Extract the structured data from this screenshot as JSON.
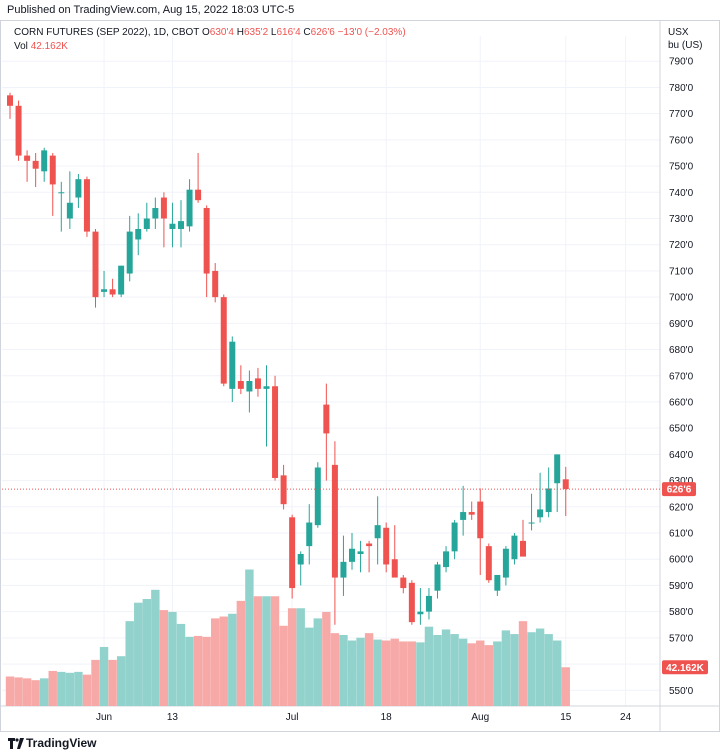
{
  "header": {
    "published_text": "Published on TradingView.com, Aug 15, 2022 18:03 UTC-5"
  },
  "legend": {
    "symbol": "CORN FUTURES (SEP 2022), 1D, CBOT",
    "open_label": "O",
    "open_value": "630'4",
    "high_label": "H",
    "high_value": "635'2",
    "low_label": "L",
    "low_value": "616'4",
    "close_label": "C",
    "close_value": "626'6",
    "change": "−13'0 (−2.03%)",
    "vol_label": "Vol",
    "vol_value": "42.162K"
  },
  "axis": {
    "currency": "USX",
    "unit": "bu (US)",
    "price_badge": "626'6",
    "volume_badge": "42.162K"
  },
  "footer": {
    "brand": "TradingView"
  },
  "colors": {
    "up": "#26a69a",
    "down": "#ef5350",
    "up_volume": "#92d2cc",
    "down_volume": "#f7a9a7",
    "grid": "#f0f3fa",
    "axis_text": "#131722"
  },
  "chart_data": {
    "type": "candlestick",
    "title": "CORN FUTURES (SEP 2022), 1D, CBOT",
    "ylabel": "USX bu (US)",
    "ylim": [
      544,
      792
    ],
    "y_ticks": [
      "550'0",
      "560'0",
      "570'0",
      "580'0",
      "590'0",
      "600'0",
      "610'0",
      "620'0",
      "630'0",
      "640'0",
      "650'0",
      "660'0",
      "670'0",
      "680'0",
      "690'0",
      "700'0",
      "710'0",
      "720'0",
      "730'0",
      "740'0",
      "750'0",
      "760'0",
      "770'0",
      "780'0",
      "790'0"
    ],
    "y_tick_values": [
      550,
      560,
      570,
      580,
      590,
      600,
      610,
      620,
      630,
      640,
      650,
      660,
      670,
      680,
      690,
      700,
      710,
      720,
      730,
      740,
      750,
      760,
      770,
      780,
      790
    ],
    "x_ticks": [
      {
        "label": "Jun",
        "index": 11
      },
      {
        "label": "13",
        "index": 19
      },
      {
        "label": "Jul",
        "index": 33
      },
      {
        "label": "18",
        "index": 44
      },
      {
        "label": "Aug",
        "index": 55
      },
      {
        "label": "15",
        "index": 65
      },
      {
        "label": "24",
        "index": 72
      }
    ],
    "last_price": 626.75,
    "candles": [
      {
        "o": 777,
        "h": 778,
        "l": 768,
        "c": 773
      },
      {
        "o": 773,
        "h": 775,
        "l": 752,
        "c": 754
      },
      {
        "o": 754,
        "h": 756,
        "l": 744,
        "c": 752
      },
      {
        "o": 752,
        "h": 755,
        "l": 742,
        "c": 749
      },
      {
        "o": 748,
        "h": 757,
        "l": 744,
        "c": 756
      },
      {
        "o": 754,
        "h": 755,
        "l": 731,
        "c": 743
      },
      {
        "o": 740,
        "h": 744,
        "l": 725,
        "c": 740
      },
      {
        "o": 730,
        "h": 748,
        "l": 726,
        "c": 736
      },
      {
        "o": 738,
        "h": 747,
        "l": 734,
        "c": 745
      },
      {
        "o": 745,
        "h": 746,
        "l": 723,
        "c": 725
      },
      {
        "o": 725,
        "h": 726,
        "l": 696,
        "c": 700
      },
      {
        "o": 702,
        "h": 710,
        "l": 700,
        "c": 703
      },
      {
        "o": 703,
        "h": 707,
        "l": 700,
        "c": 701
      },
      {
        "o": 701,
        "h": 712,
        "l": 700,
        "c": 712
      },
      {
        "o": 709,
        "h": 731,
        "l": 706,
        "c": 725
      },
      {
        "o": 722,
        "h": 732,
        "l": 716,
        "c": 726
      },
      {
        "o": 726,
        "h": 736,
        "l": 725,
        "c": 730
      },
      {
        "o": 730,
        "h": 738,
        "l": 726,
        "c": 734
      },
      {
        "o": 738,
        "h": 740,
        "l": 719,
        "c": 730
      },
      {
        "o": 726,
        "h": 736,
        "l": 719,
        "c": 728
      },
      {
        "o": 726,
        "h": 737,
        "l": 719,
        "c": 729
      },
      {
        "o": 727,
        "h": 745,
        "l": 725,
        "c": 741
      },
      {
        "o": 741,
        "h": 755,
        "l": 736,
        "c": 737
      },
      {
        "o": 734,
        "h": 735,
        "l": 700,
        "c": 709
      },
      {
        "o": 710,
        "h": 713,
        "l": 698,
        "c": 700
      },
      {
        "o": 700,
        "h": 701,
        "l": 666,
        "c": 667
      },
      {
        "o": 665,
        "h": 685,
        "l": 660,
        "c": 683
      },
      {
        "o": 668,
        "h": 674,
        "l": 663,
        "c": 665
      },
      {
        "o": 664,
        "h": 672,
        "l": 656,
        "c": 668
      },
      {
        "o": 669,
        "h": 673,
        "l": 662,
        "c": 665
      },
      {
        "o": 665,
        "h": 674,
        "l": 643,
        "c": 666
      },
      {
        "o": 666,
        "h": 670,
        "l": 630,
        "c": 631
      },
      {
        "o": 632,
        "h": 636,
        "l": 619,
        "c": 621
      },
      {
        "o": 616,
        "h": 617,
        "l": 585,
        "c": 589
      },
      {
        "o": 598,
        "h": 603,
        "l": 590,
        "c": 602
      },
      {
        "o": 605,
        "h": 621,
        "l": 598,
        "c": 614
      },
      {
        "o": 613,
        "h": 637,
        "l": 612,
        "c": 635
      },
      {
        "o": 659,
        "h": 667,
        "l": 630,
        "c": 648
      },
      {
        "o": 636,
        "h": 645,
        "l": 575,
        "c": 593
      },
      {
        "o": 593,
        "h": 609,
        "l": 586,
        "c": 599
      },
      {
        "o": 599,
        "h": 610,
        "l": 596,
        "c": 604
      },
      {
        "o": 602,
        "h": 607,
        "l": 595,
        "c": 603
      },
      {
        "o": 606,
        "h": 607,
        "l": 595,
        "c": 605
      },
      {
        "o": 608,
        "h": 624,
        "l": 598,
        "c": 613
      },
      {
        "o": 612,
        "h": 614,
        "l": 595,
        "c": 598
      },
      {
        "o": 600,
        "h": 613,
        "l": 594,
        "c": 593
      },
      {
        "o": 593,
        "h": 594,
        "l": 587,
        "c": 589
      },
      {
        "o": 591,
        "h": 592,
        "l": 575,
        "c": 576
      },
      {
        "o": 579,
        "h": 589,
        "l": 575,
        "c": 580
      },
      {
        "o": 580,
        "h": 589,
        "l": 577,
        "c": 586
      },
      {
        "o": 588,
        "h": 599,
        "l": 585,
        "c": 598
      },
      {
        "o": 597,
        "h": 605,
        "l": 595,
        "c": 603
      },
      {
        "o": 603,
        "h": 615,
        "l": 600,
        "c": 614
      },
      {
        "o": 615,
        "h": 628,
        "l": 609,
        "c": 618
      },
      {
        "o": 618,
        "h": 622,
        "l": 615,
        "c": 617
      },
      {
        "o": 622,
        "h": 627,
        "l": 594,
        "c": 608
      },
      {
        "o": 605,
        "h": 606,
        "l": 591,
        "c": 592
      },
      {
        "o": 588,
        "h": 593,
        "l": 586,
        "c": 594
      },
      {
        "o": 593,
        "h": 605,
        "l": 590,
        "c": 604
      },
      {
        "o": 600,
        "h": 610,
        "l": 598,
        "c": 609
      },
      {
        "o": 607,
        "h": 615,
        "l": 603,
        "c": 601
      },
      {
        "o": 614,
        "h": 625,
        "l": 611,
        "c": 614
      },
      {
        "o": 616,
        "h": 633,
        "l": 614,
        "c": 619
      },
      {
        "o": 618,
        "h": 635,
        "l": 616,
        "c": 627
      },
      {
        "o": 629,
        "h": 640,
        "l": 618,
        "c": 640
      },
      {
        "o": 630.5,
        "h": 635.25,
        "l": 616.5,
        "c": 626.75
      }
    ],
    "volume_max": 180,
    "volumes": [
      32,
      31,
      30,
      28,
      30,
      38,
      37,
      36,
      37,
      34,
      50,
      64,
      50,
      54,
      92,
      112,
      116,
      126,
      104,
      102,
      89,
      75,
      76,
      75,
      95,
      97,
      100,
      114,
      148,
      119,
      119,
      119,
      87,
      106,
      106,
      85,
      95,
      102,
      79,
      77,
      71,
      74,
      79,
      72,
      71,
      73,
      70,
      70,
      69,
      86,
      77,
      83,
      78,
      73,
      68,
      71,
      66,
      70,
      82,
      78,
      92,
      80,
      84,
      78,
      71,
      42
    ]
  }
}
